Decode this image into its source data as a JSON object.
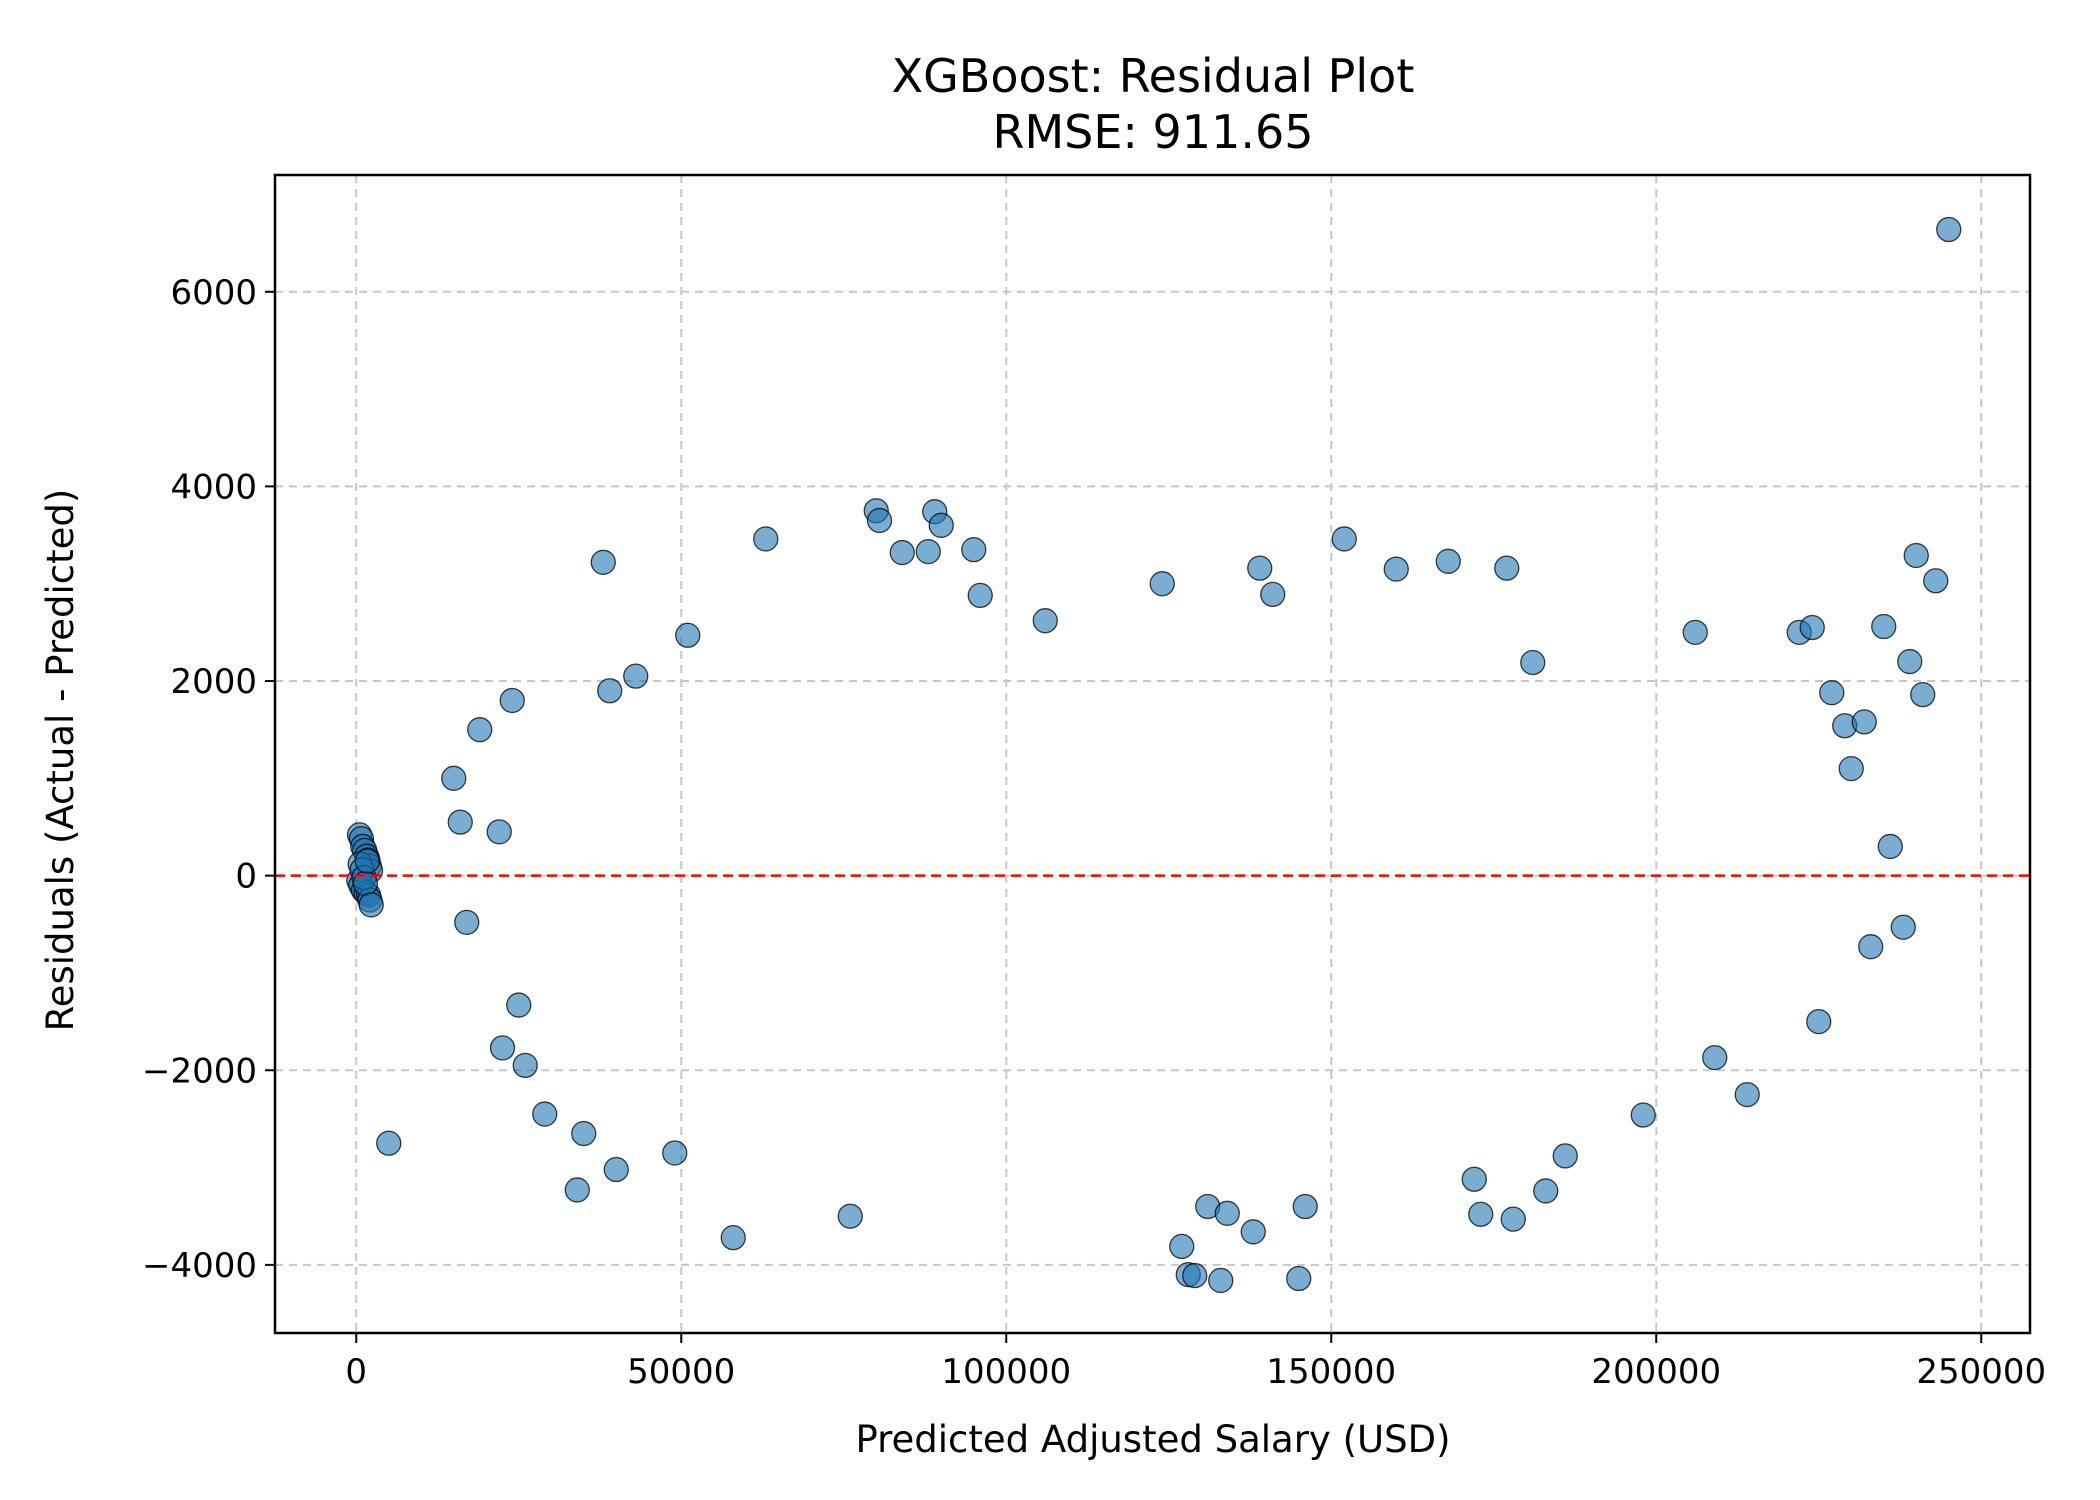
{
  "chart_data": {
    "type": "scatter",
    "title": "XGBoost: Residual Plot",
    "subtitle": "RMSE: 911.65",
    "xlabel": "Predicted Adjusted Salary (USD)",
    "ylabel": "Residuals (Actual - Predicted)",
    "xlim": [
      -12500,
      257500
    ],
    "ylim": [
      -4700,
      7200
    ],
    "xticks": [
      0,
      50000,
      100000,
      150000,
      200000,
      250000
    ],
    "xtick_labels": [
      "0",
      "50000",
      "100000",
      "150000",
      "200000",
      "250000"
    ],
    "yticks": [
      -4000,
      -2000,
      0,
      2000,
      4000,
      6000
    ],
    "ytick_labels": [
      "−4000",
      "−2000",
      "0",
      "2000",
      "4000",
      "6000"
    ],
    "grid": true,
    "reference_line": {
      "y": 0,
      "color": "#ff0000",
      "style": "dashed"
    },
    "marker_color": "#1f77b4",
    "marker_edge_color": "#000000",
    "marker_alpha": 0.6,
    "series": [
      {
        "x": [
          500,
          800,
          1000,
          1300,
          1600,
          1800,
          2000,
          2200,
          400,
          700,
          1100,
          1500,
          1900,
          2100,
          600,
          900,
          1200,
          1400,
          1700,
          2300,
          5000,
          15000,
          16000,
          17000,
          19000,
          22000,
          22500,
          24000,
          25000,
          26000,
          29000,
          34000,
          35000,
          38000,
          39000,
          40000,
          43000,
          49000,
          51000,
          58000,
          63000,
          76000,
          80000,
          80500,
          84000,
          88000,
          89000,
          90000,
          95000,
          96000,
          106000,
          124000,
          127000,
          128000,
          129000,
          131000,
          133000,
          134000,
          138000,
          139000,
          141000,
          145000,
          146000,
          152000,
          160000,
          168000,
          172000,
          173000,
          177000,
          178000,
          181000,
          183000,
          186000,
          198000,
          206000,
          209000,
          214000,
          222000,
          224000,
          225000,
          227000,
          229000,
          230000,
          232000,
          233000,
          235000,
          236000,
          238000,
          239000,
          240000,
          241000,
          243000,
          245000
        ],
        "y": [
          420,
          380,
          300,
          260,
          200,
          160,
          100,
          50,
          -50,
          -100,
          -150,
          -180,
          -200,
          -250,
          120,
          60,
          -20,
          -80,
          150,
          -300,
          -2750,
          1000,
          550,
          -480,
          1500,
          450,
          -1770,
          1800,
          -1330,
          -1950,
          -2450,
          -3230,
          -2650,
          3220,
          1900,
          -3020,
          2050,
          -2850,
          2470,
          -3720,
          3460,
          -3500,
          3750,
          3650,
          3320,
          3330,
          3740,
          3600,
          3350,
          2880,
          2620,
          3000,
          -3810,
          -4100,
          -4110,
          -3400,
          -4160,
          -3470,
          -3660,
          3160,
          2890,
          -4140,
          -3400,
          3460,
          3150,
          3230,
          -3120,
          -3480,
          3160,
          -3530,
          2190,
          -3240,
          -2880,
          -2460,
          2500,
          -1870,
          -2250,
          2500,
          2550,
          -1500,
          1880,
          1540,
          1100,
          1580,
          -730,
          2560,
          300,
          -530,
          2200,
          3290,
          1860,
          3030,
          6640
        ]
      }
    ]
  }
}
